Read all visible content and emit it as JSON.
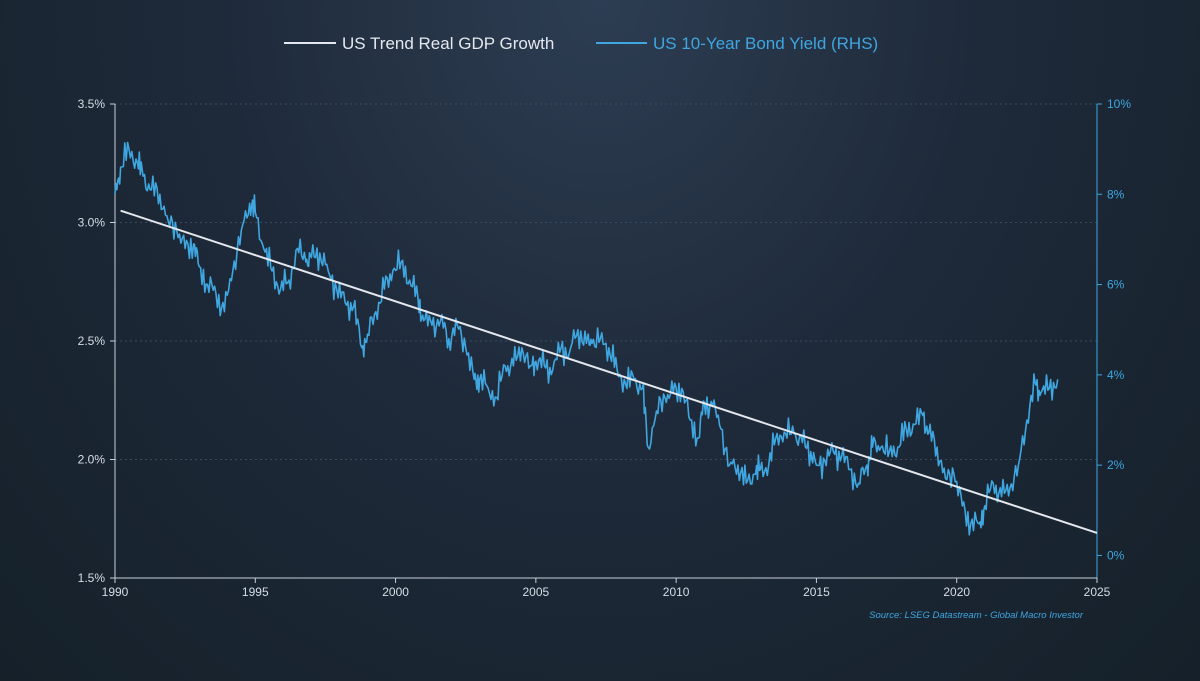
{
  "chart_data": {
    "type": "line",
    "title": "",
    "xlabel": "",
    "ylabel_left": "",
    "ylabel_right": "",
    "xlim": [
      1990,
      2025
    ],
    "ylim_left": [
      1.5,
      3.5
    ],
    "ylim_right": [
      -0.5,
      10
    ],
    "x_ticks": [
      "1990",
      "1995",
      "2000",
      "2005",
      "2010",
      "2015",
      "2020",
      "2025"
    ],
    "y_left_ticks": [
      "1.5%",
      "2.0%",
      "2.5%",
      "3.0%",
      "3.5%"
    ],
    "y_right_ticks": [
      "0%",
      "2%",
      "4%",
      "6%",
      "8%",
      "10%"
    ],
    "legend_position": "top-center",
    "source": "Source: LSEG Datastream - Global Macro Investor",
    "colors": {
      "trend": "#e4e8ee",
      "yield": "#3fa6e0",
      "grid": "#3a4a5c"
    },
    "series": [
      {
        "name": "US Trend Real GDP Growth",
        "axis": "left",
        "x": [
          1990.2,
          2025
        ],
        "values": [
          3.05,
          1.69
        ]
      },
      {
        "name": "US 10-Year Bond Yield (RHS)",
        "axis": "right",
        "x": [
          1990.0,
          1990.2,
          1990.5,
          1990.8,
          1991.0,
          1991.3,
          1991.6,
          1991.9,
          1992.2,
          1992.5,
          1992.8,
          1993.0,
          1993.3,
          1993.6,
          1993.9,
          1994.2,
          1994.5,
          1994.8,
          1995.0,
          1995.3,
          1995.6,
          1995.9,
          1996.2,
          1996.5,
          1996.8,
          1997.0,
          1997.3,
          1997.6,
          1997.9,
          1998.2,
          1998.5,
          1998.8,
          1999.0,
          1999.3,
          1999.6,
          1999.9,
          2000.2,
          2000.5,
          2000.8,
          2001.0,
          2001.3,
          2001.6,
          2001.9,
          2002.2,
          2002.5,
          2002.8,
          2003.0,
          2003.3,
          2003.6,
          2003.9,
          2004.2,
          2004.5,
          2004.8,
          2005.0,
          2005.3,
          2005.6,
          2005.9,
          2006.2,
          2006.5,
          2006.8,
          2007.0,
          2007.3,
          2007.6,
          2007.9,
          2008.2,
          2008.5,
          2008.8,
          2009.0,
          2009.3,
          2009.6,
          2009.9,
          2010.2,
          2010.5,
          2010.8,
          2011.0,
          2011.3,
          2011.6,
          2011.9,
          2012.2,
          2012.5,
          2012.8,
          2013.0,
          2013.3,
          2013.6,
          2013.9,
          2014.2,
          2014.5,
          2014.8,
          2015.0,
          2015.3,
          2015.6,
          2015.9,
          2016.2,
          2016.5,
          2016.8,
          2017.0,
          2017.3,
          2017.6,
          2017.9,
          2018.2,
          2018.5,
          2018.8,
          2019.0,
          2019.3,
          2019.6,
          2019.9,
          2020.2,
          2020.5,
          2020.8,
          2021.0,
          2021.3,
          2021.6,
          2021.9,
          2022.2,
          2022.5,
          2022.8,
          2023.0,
          2023.3,
          2023.6
        ],
        "values": [
          8.0,
          8.6,
          9.0,
          8.7,
          8.4,
          8.1,
          8.0,
          7.4,
          7.2,
          6.8,
          6.9,
          6.4,
          6.0,
          5.8,
          5.4,
          6.3,
          7.2,
          7.8,
          7.6,
          6.8,
          6.3,
          5.9,
          6.1,
          6.8,
          6.5,
          6.6,
          6.7,
          6.3,
          5.9,
          5.6,
          5.5,
          4.6,
          4.9,
          5.4,
          5.9,
          6.3,
          6.5,
          6.1,
          5.7,
          5.2,
          5.1,
          5.2,
          4.8,
          5.1,
          4.6,
          3.9,
          3.9,
          3.7,
          3.5,
          4.2,
          4.2,
          4.6,
          4.2,
          4.3,
          4.2,
          4.1,
          4.6,
          4.5,
          5.0,
          4.7,
          4.7,
          4.8,
          4.6,
          4.1,
          3.8,
          3.9,
          3.7,
          2.4,
          3.2,
          3.5,
          3.6,
          3.7,
          3.0,
          2.6,
          3.4,
          3.3,
          2.8,
          2.0,
          2.0,
          1.6,
          1.8,
          1.9,
          2.0,
          2.7,
          2.7,
          2.7,
          2.5,
          2.3,
          2.0,
          2.1,
          2.3,
          2.2,
          1.9,
          1.6,
          2.0,
          2.4,
          2.4,
          2.3,
          2.4,
          2.8,
          2.9,
          3.1,
          2.7,
          2.4,
          1.7,
          1.8,
          1.1,
          0.7,
          0.7,
          1.1,
          1.6,
          1.3,
          1.5,
          2.0,
          3.0,
          3.8,
          3.6,
          3.7,
          3.9
        ]
      }
    ]
  }
}
